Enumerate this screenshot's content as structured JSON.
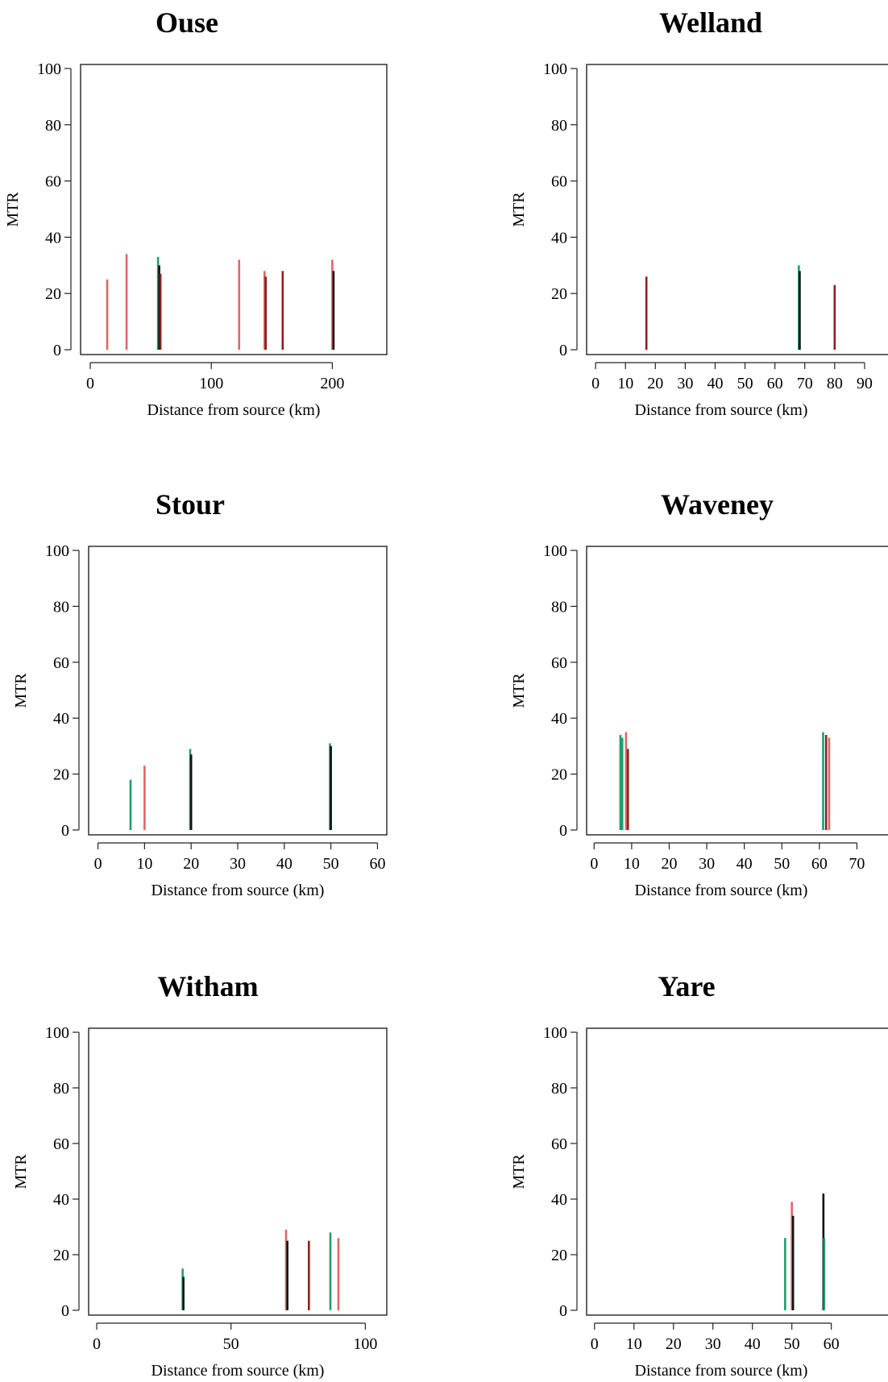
{
  "chart_data": [
    {
      "type": "bar",
      "title": "Ouse",
      "xlabel": "Distance from source (km)",
      "ylabel": "MTR",
      "xlim": [
        -8,
        245
      ],
      "ylim": [
        0,
        100
      ],
      "xticks": [
        0,
        100,
        200
      ],
      "yticks": [
        0,
        20,
        40,
        60,
        80,
        100
      ],
      "bars": [
        {
          "x": 14,
          "value": 25,
          "color": "#e06666"
        },
        {
          "x": 30,
          "value": 34,
          "color": "#e06666"
        },
        {
          "x": 56,
          "value": 33,
          "color": "#1f9e6e"
        },
        {
          "x": 57,
          "value": 30,
          "color": "#111111"
        },
        {
          "x": 58,
          "value": 27,
          "color": "#8b2020"
        },
        {
          "x": 123,
          "value": 32,
          "color": "#e06666"
        },
        {
          "x": 144,
          "value": 28,
          "color": "#e06666"
        },
        {
          "x": 145,
          "value": 26,
          "color": "#8b2020"
        },
        {
          "x": 159,
          "value": 28,
          "color": "#8b2020"
        },
        {
          "x": 200,
          "value": 32,
          "color": "#e06666"
        },
        {
          "x": 201,
          "value": 28,
          "color": "#111111"
        }
      ]
    },
    {
      "type": "bar",
      "title": "Welland",
      "xlabel": "Distance from source (km)",
      "ylabel": "MTR",
      "xlim": [
        -3,
        100
      ],
      "ylim": [
        0,
        100
      ],
      "xticks": [
        0,
        10,
        20,
        30,
        40,
        50,
        60,
        70,
        80,
        90
      ],
      "yticks": [
        0,
        20,
        40,
        60,
        80,
        100
      ],
      "bars": [
        {
          "x": 17,
          "value": 26,
          "color": "#8b2020"
        },
        {
          "x": 68,
          "value": 30,
          "color": "#1f9e6e"
        },
        {
          "x": 68.3,
          "value": 28,
          "color": "#111111"
        },
        {
          "x": 80,
          "value": 23,
          "color": "#8b2020"
        }
      ]
    },
    {
      "type": "bar",
      "title": "Stour",
      "xlabel": "Distance from source (km)",
      "ylabel": "MTR",
      "xlim": [
        -2,
        62
      ],
      "ylim": [
        0,
        100
      ],
      "xticks": [
        0,
        10,
        20,
        30,
        40,
        50,
        60
      ],
      "yticks": [
        0,
        20,
        40,
        60,
        80,
        100
      ],
      "bars": [
        {
          "x": 7,
          "value": 18,
          "color": "#1f9e6e"
        },
        {
          "x": 10,
          "value": 23,
          "color": "#e06666"
        },
        {
          "x": 19.8,
          "value": 29,
          "color": "#1f9e6e"
        },
        {
          "x": 20,
          "value": 27,
          "color": "#111111"
        },
        {
          "x": 49.8,
          "value": 31,
          "color": "#1f9e6e"
        },
        {
          "x": 50,
          "value": 30,
          "color": "#111111"
        }
      ]
    },
    {
      "type": "bar",
      "title": "Waveney",
      "xlabel": "Distance from source (km)",
      "ylabel": "MTR",
      "xlim": [
        -2,
        80
      ],
      "ylim": [
        0,
        100
      ],
      "xticks": [
        0,
        10,
        20,
        30,
        40,
        50,
        60,
        70
      ],
      "yticks": [
        0,
        20,
        40,
        60,
        80,
        100
      ],
      "bars": [
        {
          "x": 7,
          "value": 34,
          "color": "#1f9e6e"
        },
        {
          "x": 7.5,
          "value": 33,
          "color": "#1f9e6e"
        },
        {
          "x": 8.5,
          "value": 35,
          "color": "#e06666"
        },
        {
          "x": 9,
          "value": 29,
          "color": "#8b2020"
        },
        {
          "x": 61,
          "value": 35,
          "color": "#1f9e6e"
        },
        {
          "x": 61.8,
          "value": 34,
          "color": "#8b2020"
        },
        {
          "x": 62.6,
          "value": 33,
          "color": "#e06666"
        }
      ]
    },
    {
      "type": "bar",
      "title": "Witham",
      "xlabel": "Distance from source (km)",
      "ylabel": "MTR",
      "xlim": [
        -3,
        108
      ],
      "ylim": [
        0,
        100
      ],
      "xticks": [
        0,
        50,
        100
      ],
      "yticks": [
        0,
        20,
        40,
        60,
        80,
        100
      ],
      "bars": [
        {
          "x": 32,
          "value": 15,
          "color": "#1f9e6e"
        },
        {
          "x": 32.3,
          "value": 12,
          "color": "#111111"
        },
        {
          "x": 70.5,
          "value": 29,
          "color": "#e06666"
        },
        {
          "x": 71,
          "value": 25,
          "color": "#111111"
        },
        {
          "x": 79,
          "value": 25,
          "color": "#8b2020"
        },
        {
          "x": 87,
          "value": 28,
          "color": "#1f9e6e"
        },
        {
          "x": 90,
          "value": 26,
          "color": "#e06666"
        }
      ]
    },
    {
      "type": "bar",
      "title": "Yare",
      "xlabel": "Distance from source (km)",
      "ylabel": "MTR",
      "xlim": [
        -2,
        76
      ],
      "ylim": [
        0,
        100
      ],
      "xticks": [
        0,
        10,
        20,
        30,
        40,
        50,
        60
      ],
      "yticks": [
        0,
        20,
        40,
        60,
        80,
        100
      ],
      "bars": [
        {
          "x": 48.3,
          "value": 26,
          "color": "#1f9e6e"
        },
        {
          "x": 50,
          "value": 39,
          "color": "#e06666"
        },
        {
          "x": 50.3,
          "value": 34,
          "color": "#111111"
        },
        {
          "x": 58,
          "value": 42,
          "color": "#111111"
        },
        {
          "x": 58.2,
          "value": 26,
          "color": "#1f9e6e"
        }
      ]
    }
  ]
}
